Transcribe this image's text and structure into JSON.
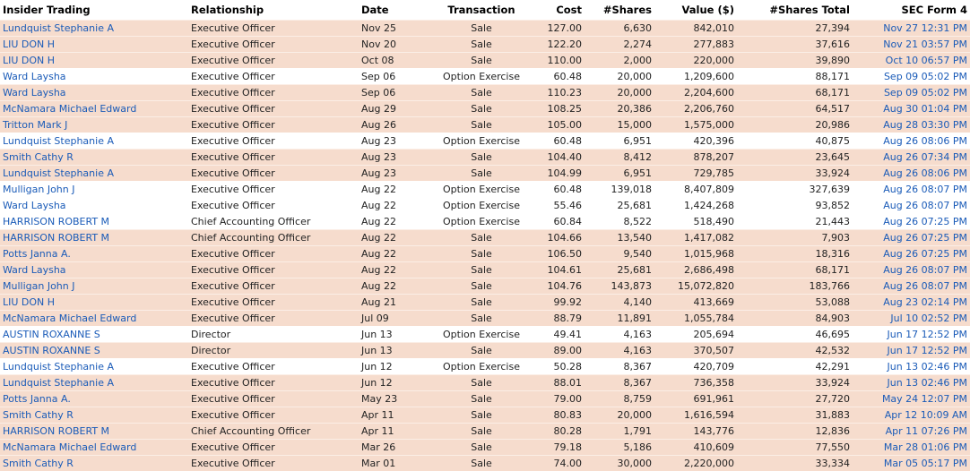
{
  "headers": {
    "insider": "Insider Trading",
    "relationship": "Relationship",
    "date": "Date",
    "transaction": "Transaction",
    "cost": "Cost",
    "shares": "#Shares",
    "value": "Value ($)",
    "shares_total": "#Shares Total",
    "sec_form": "SEC Form 4"
  },
  "colors": {
    "sale_row": "#f6dccd",
    "option_row": "#ffffff",
    "link": "#1a5bb8"
  },
  "rows": [
    [
      "Lundquist Stephanie A",
      "Executive Officer",
      "Nov 25",
      "Sale",
      "127.00",
      "6,630",
      "842,010",
      "27,394",
      "Nov 27 12:31 PM"
    ],
    [
      "LIU DON H",
      "Executive Officer",
      "Nov 20",
      "Sale",
      "122.20",
      "2,274",
      "277,883",
      "37,616",
      "Nov 21 03:57 PM"
    ],
    [
      "LIU DON H",
      "Executive Officer",
      "Oct 08",
      "Sale",
      "110.00",
      "2,000",
      "220,000",
      "39,890",
      "Oct 10 06:57 PM"
    ],
    [
      "Ward Laysha",
      "Executive Officer",
      "Sep 06",
      "Option Exercise",
      "60.48",
      "20,000",
      "1,209,600",
      "88,171",
      "Sep 09 05:02 PM"
    ],
    [
      "Ward Laysha",
      "Executive Officer",
      "Sep 06",
      "Sale",
      "110.23",
      "20,000",
      "2,204,600",
      "68,171",
      "Sep 09 05:02 PM"
    ],
    [
      "McNamara Michael Edward",
      "Executive Officer",
      "Aug 29",
      "Sale",
      "108.25",
      "20,386",
      "2,206,760",
      "64,517",
      "Aug 30 01:04 PM"
    ],
    [
      "Tritton Mark J",
      "Executive Officer",
      "Aug 26",
      "Sale",
      "105.00",
      "15,000",
      "1,575,000",
      "20,986",
      "Aug 28 03:30 PM"
    ],
    [
      "Lundquist Stephanie A",
      "Executive Officer",
      "Aug 23",
      "Option Exercise",
      "60.48",
      "6,951",
      "420,396",
      "40,875",
      "Aug 26 08:06 PM"
    ],
    [
      "Smith Cathy R",
      "Executive Officer",
      "Aug 23",
      "Sale",
      "104.40",
      "8,412",
      "878,207",
      "23,645",
      "Aug 26 07:34 PM"
    ],
    [
      "Lundquist Stephanie A",
      "Executive Officer",
      "Aug 23",
      "Sale",
      "104.99",
      "6,951",
      "729,785",
      "33,924",
      "Aug 26 08:06 PM"
    ],
    [
      "Mulligan John J",
      "Executive Officer",
      "Aug 22",
      "Option Exercise",
      "60.48",
      "139,018",
      "8,407,809",
      "327,639",
      "Aug 26 08:07 PM"
    ],
    [
      "Ward Laysha",
      "Executive Officer",
      "Aug 22",
      "Option Exercise",
      "55.46",
      "25,681",
      "1,424,268",
      "93,852",
      "Aug 26 08:07 PM"
    ],
    [
      "HARRISON ROBERT M",
      "Chief Accounting Officer",
      "Aug 22",
      "Option Exercise",
      "60.84",
      "8,522",
      "518,490",
      "21,443",
      "Aug 26 07:25 PM"
    ],
    [
      "HARRISON ROBERT M",
      "Chief Accounting Officer",
      "Aug 22",
      "Sale",
      "104.66",
      "13,540",
      "1,417,082",
      "7,903",
      "Aug 26 07:25 PM"
    ],
    [
      "Potts Janna A.",
      "Executive Officer",
      "Aug 22",
      "Sale",
      "106.50",
      "9,540",
      "1,015,968",
      "18,316",
      "Aug 26 07:25 PM"
    ],
    [
      "Ward Laysha",
      "Executive Officer",
      "Aug 22",
      "Sale",
      "104.61",
      "25,681",
      "2,686,498",
      "68,171",
      "Aug 26 08:07 PM"
    ],
    [
      "Mulligan John J",
      "Executive Officer",
      "Aug 22",
      "Sale",
      "104.76",
      "143,873",
      "15,072,820",
      "183,766",
      "Aug 26 08:07 PM"
    ],
    [
      "LIU DON H",
      "Executive Officer",
      "Aug 21",
      "Sale",
      "99.92",
      "4,140",
      "413,669",
      "53,088",
      "Aug 23 02:14 PM"
    ],
    [
      "McNamara Michael Edward",
      "Executive Officer",
      "Jul 09",
      "Sale",
      "88.79",
      "11,891",
      "1,055,784",
      "84,903",
      "Jul 10 02:52 PM"
    ],
    [
      "AUSTIN ROXANNE S",
      "Director",
      "Jun 13",
      "Option Exercise",
      "49.41",
      "4,163",
      "205,694",
      "46,695",
      "Jun 17 12:52 PM"
    ],
    [
      "AUSTIN ROXANNE S",
      "Director",
      "Jun 13",
      "Sale",
      "89.00",
      "4,163",
      "370,507",
      "42,532",
      "Jun 17 12:52 PM"
    ],
    [
      "Lundquist Stephanie A",
      "Executive Officer",
      "Jun 12",
      "Option Exercise",
      "50.28",
      "8,367",
      "420,709",
      "42,291",
      "Jun 13 02:46 PM"
    ],
    [
      "Lundquist Stephanie A",
      "Executive Officer",
      "Jun 12",
      "Sale",
      "88.01",
      "8,367",
      "736,358",
      "33,924",
      "Jun 13 02:46 PM"
    ],
    [
      "Potts Janna A.",
      "Executive Officer",
      "May 23",
      "Sale",
      "79.00",
      "8,759",
      "691,961",
      "27,720",
      "May 24 12:07 PM"
    ],
    [
      "Smith Cathy R",
      "Executive Officer",
      "Apr 11",
      "Sale",
      "80.83",
      "20,000",
      "1,616,594",
      "31,883",
      "Apr 12 10:09 AM"
    ],
    [
      "HARRISON ROBERT M",
      "Chief Accounting Officer",
      "Apr 11",
      "Sale",
      "80.28",
      "1,791",
      "143,776",
      "12,836",
      "Apr 11 07:26 PM"
    ],
    [
      "McNamara Michael Edward",
      "Executive Officer",
      "Mar 26",
      "Sale",
      "79.18",
      "5,186",
      "410,609",
      "77,550",
      "Mar 28 01:06 PM"
    ],
    [
      "Smith Cathy R",
      "Executive Officer",
      "Mar 01",
      "Sale",
      "74.00",
      "30,000",
      "2,220,000",
      "33,334",
      "Mar 05 05:17 PM"
    ]
  ]
}
